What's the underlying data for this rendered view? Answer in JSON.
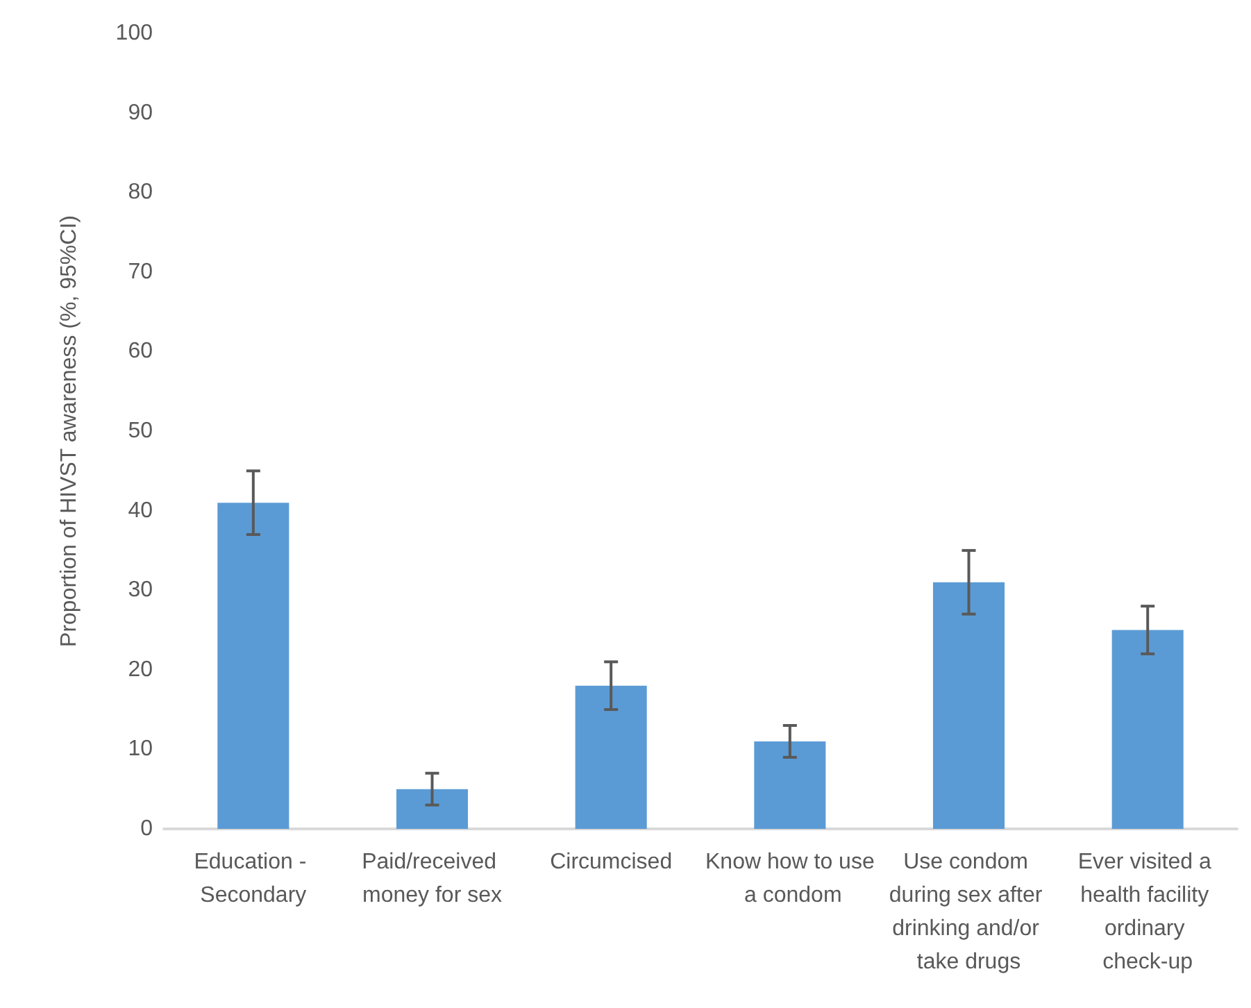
{
  "chart_data": {
    "type": "bar",
    "ylabel": "Proportion of HIVST awareness (%, 95%CI)",
    "categories": [
      "Education - Secondary",
      "Paid/received money for sex",
      "Circumcised",
      "Know how to use a condom",
      "Use condom during sex after drinking and/or take drugs",
      "Ever visited a health facility ordinary check-up"
    ],
    "values": [
      41,
      5,
      18,
      11,
      31,
      25
    ],
    "errors": [
      [
        37,
        45
      ],
      [
        3,
        7
      ],
      [
        15,
        21
      ],
      [
        9,
        13
      ],
      [
        27,
        35
      ],
      [
        22,
        28
      ]
    ],
    "color": "#5b9bd5",
    "ylim": [
      0,
      100
    ],
    "yticks": [
      0,
      10,
      20,
      30,
      40,
      50,
      60,
      70,
      80,
      90,
      100
    ],
    "grid": false
  }
}
